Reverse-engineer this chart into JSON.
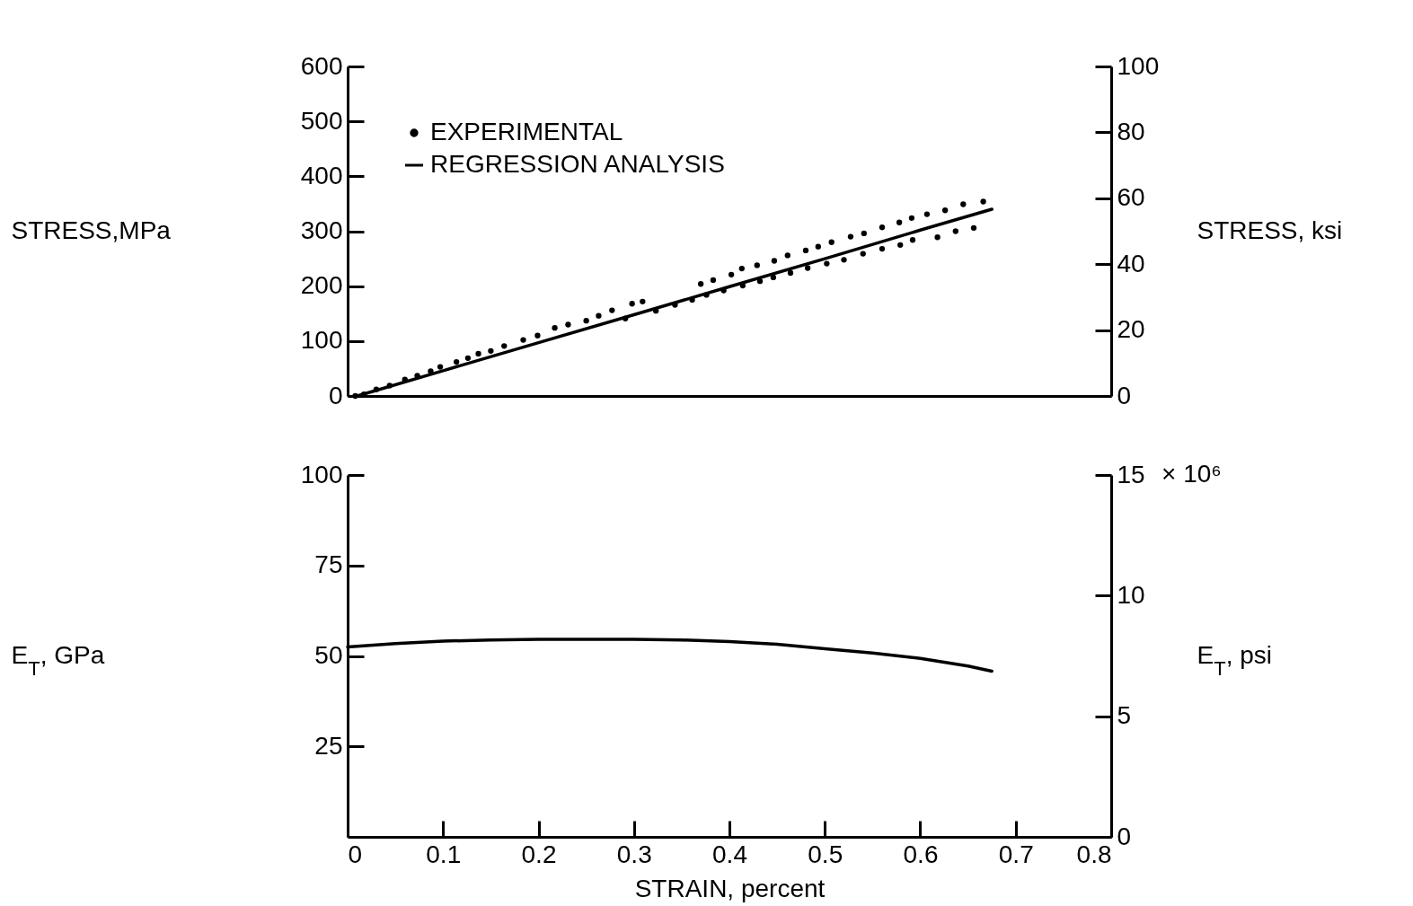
{
  "chart_data": [
    {
      "type": "scatter",
      "ylabel": "STRESS,MPa",
      "y2label": "STRESS, ksi",
      "xlim": [
        0,
        0.8
      ],
      "xticks": [
        0,
        0.1,
        0.2,
        0.3,
        0.4,
        0.5,
        0.6,
        0.7,
        0.8
      ],
      "ylim": [
        0,
        600
      ],
      "yticks": [
        0,
        100,
        200,
        300,
        400,
        500,
        600
      ],
      "y2lim": [
        0,
        100
      ],
      "y2ticks": [
        0,
        20,
        40,
        60,
        80,
        100
      ],
      "tick_labels": "y",
      "legend": "top left",
      "marker": "circle",
      "series": [
        {
          "name": "EXPERIMENTAL",
          "color": "#000000",
          "x": [
            0.008,
            0.017,
            0.03,
            0.044,
            0.06,
            0.073,
            0.087,
            0.097,
            0.114,
            0.126,
            0.137,
            0.15,
            0.164,
            0.184,
            0.199,
            0.217,
            0.231,
            0.25,
            0.263,
            0.277,
            0.291,
            0.298,
            0.309,
            0.323,
            0.343,
            0.361,
            0.37,
            0.383,
            0.402,
            0.413,
            0.429,
            0.447,
            0.461,
            0.48,
            0.493,
            0.507,
            0.527,
            0.541,
            0.56,
            0.578,
            0.591,
            0.607,
            0.626,
            0.645,
            0.666,
            0.376,
            0.394,
            0.414,
            0.432,
            0.446,
            0.464,
            0.482,
            0.502,
            0.52,
            0.54,
            0.56,
            0.579,
            0.592,
            0.618,
            0.637,
            0.656
          ],
          "values": [
            0,
            3,
            12,
            19,
            30,
            37,
            45,
            53,
            62,
            69,
            77,
            82,
            91,
            102,
            110,
            124,
            130,
            137,
            146,
            156,
            141,
            168,
            172,
            155,
            166,
            175,
            204,
            211,
            221,
            232,
            238,
            246,
            256,
            265,
            272,
            280,
            290,
            296,
            307,
            316,
            324,
            331,
            338,
            349,
            354,
            184,
            192,
            201,
            209,
            216,
            224,
            233,
            241,
            248,
            259,
            268,
            275,
            284,
            289,
            300,
            306
          ]
        },
        {
          "name": "REGRESSION ANALYSIS",
          "type": "line",
          "color": "#000000",
          "line_style": "solid",
          "marker": "none",
          "x": [
            0.01,
            0.1,
            0.2,
            0.3,
            0.4,
            0.5,
            0.6,
            0.675
          ],
          "values": [
            0,
            46,
            97,
            148,
            199,
            250,
            302,
            340
          ]
        }
      ]
    },
    {
      "type": "line",
      "xlabel": "STRAIN, percent",
      "ylabel": "E$_{T}$, GPa",
      "y2label": "E$_{T}$, psi",
      "xlim": [
        0,
        0.8
      ],
      "xticks": [
        0,
        0.1,
        0.2,
        0.3,
        0.4,
        0.5,
        0.6,
        0.7,
        0.8
      ],
      "ylim": [
        0,
        100
      ],
      "yticks": [
        25,
        50,
        75,
        100
      ],
      "y2lim": [
        0,
        15
      ],
      "y2ticks": [
        0,
        5,
        10,
        15
      ],
      "annotations": [
        "× 10⁶"
      ],
      "line_style": "solid",
      "series": [
        {
          "color": "#000000",
          "x": [
            0,
            0.05,
            0.1,
            0.15,
            0.2,
            0.25,
            0.3,
            0.35,
            0.4,
            0.45,
            0.5,
            0.55,
            0.6,
            0.65,
            0.675
          ],
          "values": [
            52.5,
            53.4,
            54.1,
            54.4,
            54.6,
            54.6,
            54.6,
            54.4,
            54,
            53.2,
            52,
            50.8,
            49.3,
            47.2,
            45.8
          ]
        }
      ]
    }
  ]
}
